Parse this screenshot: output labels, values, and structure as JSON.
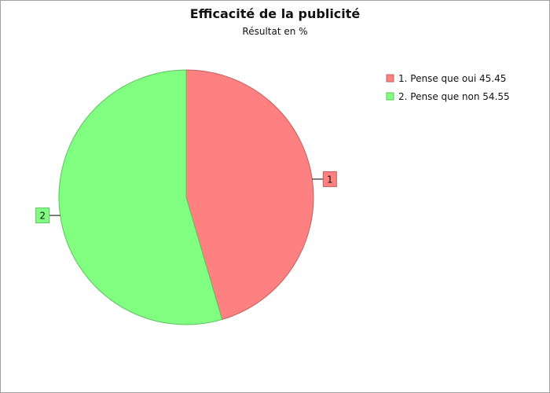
{
  "chart_data": {
    "type": "pie",
    "title": "Efficacité de la publicité",
    "subtitle": "Résultat en %",
    "legend_position": "top-right",
    "slices": [
      {
        "label": "1",
        "legend": "1. Pense que oui 45.45",
        "value": 45.45,
        "color": "#ff8080"
      },
      {
        "label": "2",
        "legend": "2. Pense que non 54.55",
        "value": 54.55,
        "color": "#80ff80"
      }
    ]
  }
}
